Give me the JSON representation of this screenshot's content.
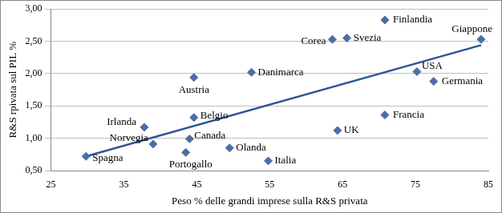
{
  "chart_data": {
    "type": "scatter",
    "x_label": "Peso % delle grandi imprese sulla R&S privata",
    "y_label": "R&S rpivata sul PIL %",
    "labels": [
      "Spagna",
      "Norvegia",
      "Irlanda",
      "Portogallo",
      "Canada",
      "Belgio",
      "Austria",
      "Olanda",
      "Danimarca",
      "Italia",
      "UK",
      "Corea",
      "Svezia",
      "Finlandia",
      "Francia",
      "USA",
      "Germania",
      "Giappone"
    ],
    "x": [
      29.8,
      39,
      37.8,
      43.5,
      44,
      44.6,
      44.6,
      49.5,
      52.5,
      54.8,
      64.3,
      63.6,
      65.6,
      70.8,
      70.8,
      75.2,
      77.5,
      84
    ],
    "values": [
      0.72,
      0.91,
      1.17,
      0.78,
      0.99,
      1.32,
      1.94,
      0.85,
      2.02,
      0.65,
      1.12,
      2.53,
      2.55,
      2.83,
      1.36,
      2.03,
      1.88,
      2.53
    ],
    "color": "#4a6fa5",
    "marker": "diamond",
    "trend_line": {
      "x": [
        29.8,
        84
      ],
      "y": [
        0.72,
        2.44
      ],
      "color": "#2f5597",
      "line_style": "solid"
    },
    "xlim": [
      25,
      85
    ],
    "xticks": [
      25,
      35,
      45,
      55,
      65,
      75,
      85
    ],
    "ylim": [
      0.5,
      3
    ],
    "yticks": [
      {
        "value": 0.5,
        "label": "0,50"
      },
      {
        "value": 1,
        "label": "1,00"
      },
      {
        "value": 1.5,
        "label": "1,50"
      },
      {
        "value": 2,
        "label": "2,00"
      },
      {
        "value": 2.5,
        "label": "2,50"
      },
      {
        "value": 3,
        "label": "3,00"
      }
    ],
    "grid": "y"
  }
}
